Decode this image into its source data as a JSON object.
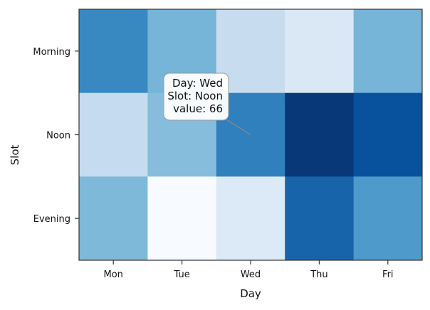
{
  "chart_data": {
    "type": "heatmap",
    "xlabel": "Day",
    "ylabel": "Slot",
    "x_categories": [
      "Mon",
      "Tue",
      "Wed",
      "Thu",
      "Fri"
    ],
    "y_categories": [
      "Morning",
      "Noon",
      "Evening"
    ],
    "values": [
      [
        63,
        45,
        23,
        14,
        45
      ],
      [
        24,
        41,
        66,
        92,
        83
      ],
      [
        43,
        0,
        13,
        76,
        56
      ]
    ],
    "value_range": [
      0,
      95
    ],
    "colormap": "Blues",
    "grid": false,
    "tooltip": {
      "lines": [
        "Day: Wed",
        "Slot: Noon",
        "value: 66"
      ],
      "x": "Wed",
      "y": "Noon"
    }
  }
}
